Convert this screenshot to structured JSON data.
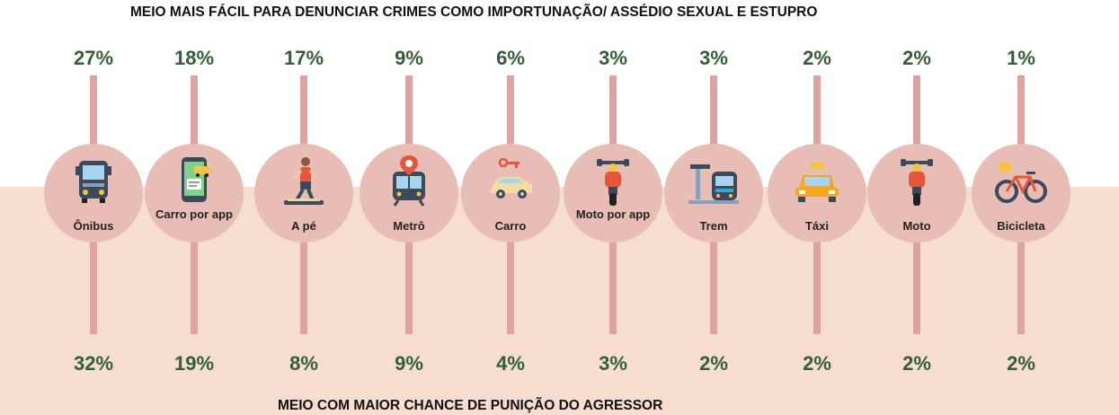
{
  "chart_data": {
    "type": "table",
    "title": "MEIO MAIS FÁCIL PARA DENUNCIAR CRIMES COMO IMPORTUNAÇÃO/ ASSÉDIO SEXUAL E ESTUPRO",
    "bottom_title": "MEIO COM MAIOR CHANCE DE PUNIÇÃO DO AGRESSOR",
    "categories": [
      "Ônibus",
      "Carro por app",
      "A pé",
      "Metrô",
      "Carro",
      "Moto por app",
      "Trem",
      "Táxi",
      "Moto",
      "Bicicleta"
    ],
    "top_labels": [
      "27%",
      "18%",
      "17%",
      "9%",
      "6%",
      "3%",
      "3%",
      "2%",
      "2%",
      "1%"
    ],
    "bottom_labels": [
      "32%",
      "19%",
      "8%",
      "9%",
      "4%",
      "3%",
      "2%",
      "2%",
      "2%",
      "2%"
    ],
    "series": [
      {
        "values": [
          27,
          18,
          17,
          9,
          6,
          3,
          3,
          2,
          2,
          1
        ]
      },
      {
        "values": [
          32,
          19,
          8,
          9,
          4,
          3,
          2,
          2,
          2,
          2
        ]
      }
    ],
    "icons": [
      "bus-icon",
      "phone-car-icon",
      "walking-person-icon",
      "metro-icon",
      "car-icon",
      "motorcycle-icon",
      "train-icon",
      "taxi-icon",
      "motorcycle-icon",
      "bicycle-icon"
    ],
    "colors": {
      "bar": "#dea39f",
      "circle": "#e8bdb5",
      "band": "#f5ddd0",
      "percent_text": "#345d3a"
    }
  }
}
